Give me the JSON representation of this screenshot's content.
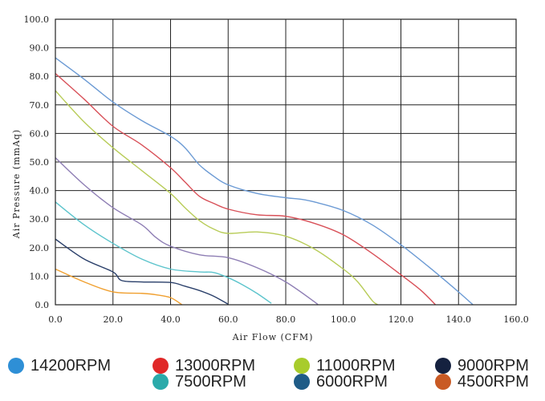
{
  "chart_data": {
    "type": "line",
    "title": "",
    "xlabel": "Air  Flow  (CFM)",
    "ylabel": "Air  Pressure  (mmAq)",
    "xlim": [
      0,
      160
    ],
    "ylim": [
      0,
      100
    ],
    "x_ticks": [
      "0.0",
      "20.0",
      "40.0",
      "60.0",
      "80.0",
      "100.0",
      "120.0",
      "140.0",
      "160.0"
    ],
    "y_ticks": [
      "0.0",
      "10.0",
      "20.0",
      "30.0",
      "40.0",
      "50.0",
      "60.0",
      "70.0",
      "80.0",
      "90.0",
      "100.0"
    ],
    "grid": true,
    "legend_position": "bottom",
    "series": [
      {
        "name": "14200RPM",
        "color": "#6b9ad4",
        "legend_color": "#2e8fd6",
        "points": [
          [
            0,
            86.5
          ],
          [
            10,
            79
          ],
          [
            20,
            71
          ],
          [
            30,
            64.5
          ],
          [
            40,
            59
          ],
          [
            45,
            55
          ],
          [
            50,
            49
          ],
          [
            55,
            45
          ],
          [
            60,
            42
          ],
          [
            70,
            39
          ],
          [
            80,
            37.5
          ],
          [
            85,
            37
          ],
          [
            90,
            36
          ],
          [
            100,
            33
          ],
          [
            110,
            28
          ],
          [
            120,
            21
          ],
          [
            130,
            13
          ],
          [
            140,
            4.5
          ],
          [
            145,
            0
          ]
        ]
      },
      {
        "name": "13000RPM",
        "color": "#d85058",
        "legend_color": "#e02828",
        "points": [
          [
            0,
            81
          ],
          [
            10,
            72
          ],
          [
            20,
            62.5
          ],
          [
            30,
            56
          ],
          [
            40,
            48
          ],
          [
            45,
            43
          ],
          [
            50,
            38
          ],
          [
            55,
            35.5
          ],
          [
            60,
            33.5
          ],
          [
            70,
            31.5
          ],
          [
            80,
            31
          ],
          [
            90,
            28.5
          ],
          [
            100,
            24.5
          ],
          [
            110,
            18
          ],
          [
            120,
            10.5
          ],
          [
            127,
            5
          ],
          [
            132,
            0
          ]
        ]
      },
      {
        "name": "11000RPM",
        "color": "#b8cc58",
        "legend_color": "#a8cc2c",
        "points": [
          [
            0,
            75
          ],
          [
            10,
            64
          ],
          [
            20,
            55
          ],
          [
            30,
            47
          ],
          [
            40,
            39
          ],
          [
            45,
            34
          ],
          [
            50,
            29.5
          ],
          [
            55,
            26.5
          ],
          [
            60,
            25
          ],
          [
            70,
            25.5
          ],
          [
            80,
            24
          ],
          [
            90,
            19.5
          ],
          [
            100,
            12.5
          ],
          [
            105,
            8
          ],
          [
            110,
            1.5
          ],
          [
            112,
            0
          ]
        ]
      },
      {
        "name": "9000RPM",
        "color": "#8e7eb4",
        "legend_color": "#15213f",
        "points": [
          [
            0,
            51.5
          ],
          [
            10,
            42
          ],
          [
            20,
            34
          ],
          [
            30,
            28
          ],
          [
            35,
            23.5
          ],
          [
            40,
            20.5
          ],
          [
            50,
            17.5
          ],
          [
            60,
            16.5
          ],
          [
            70,
            13
          ],
          [
            80,
            8
          ],
          [
            90,
            1
          ],
          [
            91,
            0
          ]
        ]
      },
      {
        "name": "7500RPM",
        "color": "#5cc4cc",
        "legend_color": "#2aaaaa",
        "points": [
          [
            0,
            36
          ],
          [
            10,
            28
          ],
          [
            20,
            21.5
          ],
          [
            30,
            16
          ],
          [
            40,
            12.5
          ],
          [
            50,
            11.5
          ],
          [
            55,
            11.3
          ],
          [
            60,
            9.5
          ],
          [
            65,
            7
          ],
          [
            70,
            4
          ],
          [
            75,
            0.5
          ]
        ]
      },
      {
        "name": "6000RPM",
        "color": "#2a3f6a",
        "legend_color": "#1f5c87",
        "points": [
          [
            0,
            23
          ],
          [
            10,
            16
          ],
          [
            20,
            11.5
          ],
          [
            23,
            8.5
          ],
          [
            30,
            8
          ],
          [
            40,
            7.8
          ],
          [
            45,
            6.5
          ],
          [
            50,
            5
          ],
          [
            55,
            3
          ],
          [
            60,
            0.2
          ]
        ]
      },
      {
        "name": "4500RPM",
        "color": "#f0a030",
        "legend_color": "#c95a24",
        "points": [
          [
            0,
            12.5
          ],
          [
            10,
            8
          ],
          [
            20,
            4.5
          ],
          [
            30,
            4
          ],
          [
            35,
            3.5
          ],
          [
            40,
            2.5
          ],
          [
            44,
            0
          ]
        ]
      }
    ]
  }
}
